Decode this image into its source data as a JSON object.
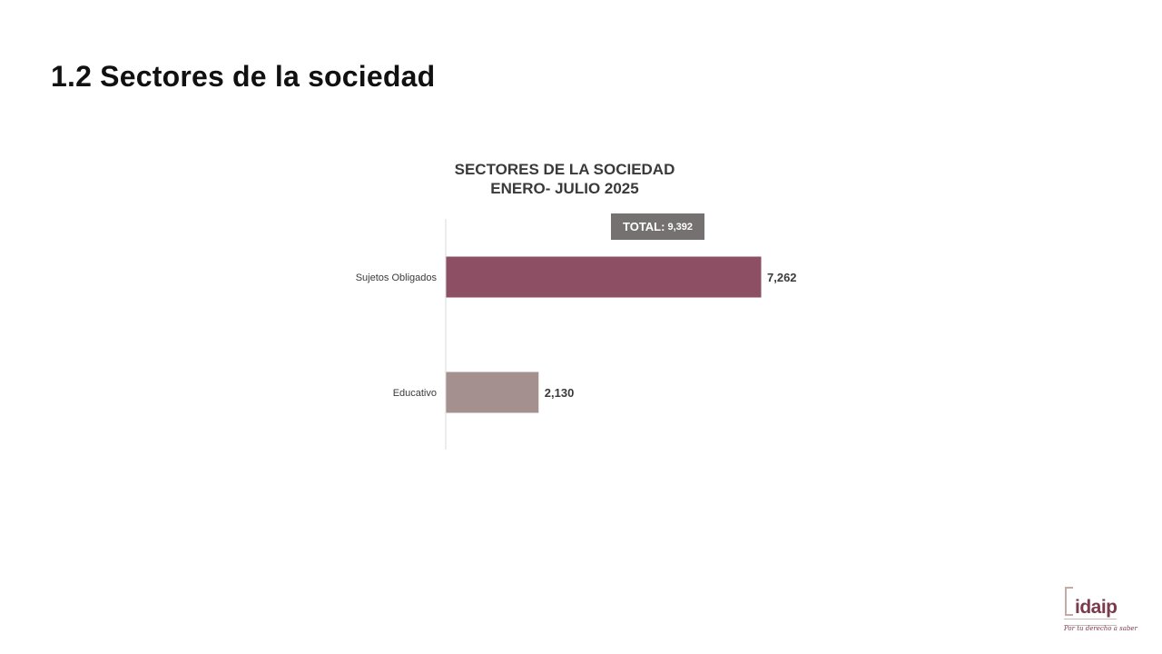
{
  "page": {
    "title": "1.2 Sectores de la sociedad"
  },
  "chart_data": {
    "type": "bar",
    "orientation": "horizontal",
    "title_lines": [
      "SECTORES DE LA SOCIEDAD",
      "ENERO- JULIO 2025"
    ],
    "categories": [
      "Sujetos Obligados",
      "Educativo"
    ],
    "values": [
      7262,
      2130
    ],
    "value_labels": [
      "7,262",
      "2,130"
    ],
    "colors": [
      "#8c4f63",
      "#a59090"
    ],
    "total": {
      "label": "TOTAL:",
      "value": "9,392"
    },
    "xlim": [
      0,
      8000
    ],
    "grid": false,
    "legend": "none"
  },
  "logo": {
    "name": "idaip",
    "slogan": "Por tu derecho a saber",
    "accent": "#7a3b4c"
  }
}
